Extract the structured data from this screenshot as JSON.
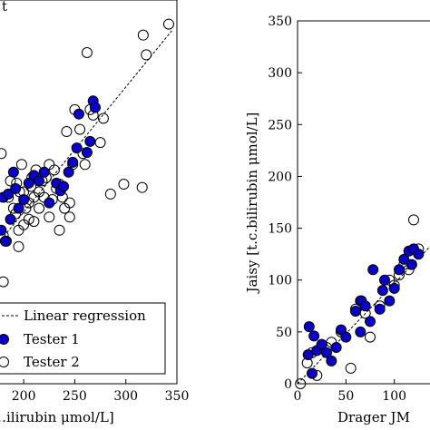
{
  "chart_data": [
    {
      "type": "scatter",
      "panel": "left",
      "title": "",
      "xlabel": "…ilirubin μmol/L]",
      "ylabel": "",
      "xlim": [
        175,
        350
      ],
      "ylim": [
        0,
        350
      ],
      "xticks": [
        200,
        250,
        300,
        350
      ],
      "xtick_labels": [
        "200",
        "250",
        "300",
        "350"
      ],
      "grid": false,
      "legend_position": "bottom-right",
      "legend": [
        "Linear regression",
        "Tester 1",
        "Tester 2"
      ],
      "regression": {
        "style": "dashed",
        "x": [
          175,
          345
        ],
        "y": [
          128,
          322
        ]
      },
      "series": [
        {
          "name": "Tester 1",
          "marker": "filled-circle",
          "color": "#0a00c8",
          "points": [
            [
              178,
              140
            ],
            [
              180,
              170
            ],
            [
              182,
              130
            ],
            [
              185,
              173
            ],
            [
              187,
              150
            ],
            [
              190,
              193
            ],
            [
              192,
              178
            ],
            [
              195,
              160
            ],
            [
              200,
              168
            ],
            [
              205,
              183
            ],
            [
              210,
              190
            ],
            [
              215,
              185
            ],
            [
              220,
              193
            ],
            [
              225,
              165
            ],
            [
              232,
              183
            ],
            [
              236,
              176
            ],
            [
              239,
              180
            ],
            [
              244,
              193
            ],
            [
              248,
              202
            ],
            [
              252,
              215
            ],
            [
              254,
              246
            ],
            [
              262,
              211
            ],
            [
              265,
              221
            ],
            [
              268,
              258
            ],
            [
              270,
              252
            ]
          ]
        },
        {
          "name": "Tester 2",
          "marker": "open-circle",
          "color": "#000000",
          "points": [
            [
              178,
              210
            ],
            [
              180,
              135
            ],
            [
              180,
              93
            ],
            [
              183,
              130
            ],
            [
              185,
              170
            ],
            [
              187,
              185
            ],
            [
              190,
              160
            ],
            [
              192,
              155
            ],
            [
              193,
              183
            ],
            [
              195,
              125
            ],
            [
              195,
              140
            ],
            [
              196,
              175
            ],
            [
              198,
              200
            ],
            [
              200,
              175
            ],
            [
              200,
              145
            ],
            [
              202,
              160
            ],
            [
              205,
              165
            ],
            [
              205,
              150
            ],
            [
              207,
              180
            ],
            [
              208,
              188
            ],
            [
              210,
              170
            ],
            [
              210,
              148
            ],
            [
              212,
              195
            ],
            [
              215,
              175
            ],
            [
              215,
              160
            ],
            [
              218,
              185
            ],
            [
              220,
              170
            ],
            [
              222,
              188
            ],
            [
              225,
              200
            ],
            [
              225,
              152
            ],
            [
              228,
              168
            ],
            [
              230,
              195
            ],
            [
              232,
              178
            ],
            [
              235,
              182
            ],
            [
              235,
              140
            ],
            [
              238,
              170
            ],
            [
              240,
              160
            ],
            [
              242,
              230
            ],
            [
              245,
              165
            ],
            [
              245,
              152
            ],
            [
              248,
              200
            ],
            [
              250,
              250
            ],
            [
              255,
              232
            ],
            [
              258,
              210
            ],
            [
              260,
              200
            ],
            [
              262,
              302
            ],
            [
              265,
              250
            ],
            [
              268,
              245
            ],
            [
              270,
              252
            ],
            [
              275,
              220
            ],
            [
              278,
              242
            ],
            [
              285,
              173
            ],
            [
              298,
              182
            ],
            [
              316,
              179
            ],
            [
              317,
              318
            ],
            [
              320,
              300
            ],
            [
              342,
              328
            ]
          ]
        }
      ]
    },
    {
      "type": "scatter",
      "panel": "right",
      "title": "",
      "xlabel": "Drager JM",
      "ylabel": "Jaisy [t.c.bilirubin μmol/L]",
      "xlim": [
        0,
        150
      ],
      "ylim": [
        0,
        350
      ],
      "xticks": [
        0,
        50,
        100
      ],
      "xtick_labels": [
        "0",
        "50",
        "100"
      ],
      "yticks": [
        0,
        50,
        100,
        150,
        200,
        250,
        300,
        350
      ],
      "ytick_labels": [
        "0",
        "50",
        "100",
        "150",
        "200",
        "250",
        "300",
        "350"
      ],
      "grid": false,
      "regression": {
        "style": "dashed",
        "x": [
          0,
          150
        ],
        "y": [
          0,
          145
        ]
      },
      "series": [
        {
          "name": "Tester 1",
          "marker": "filled-circle",
          "color": "#0a00c8",
          "points": [
            [
              11,
              28
            ],
            [
              12,
              55
            ],
            [
              15,
              10
            ],
            [
              17,
              46
            ],
            [
              20,
              32
            ],
            [
              25,
              38
            ],
            [
              30,
              30
            ],
            [
              35,
              22
            ],
            [
              40,
              35
            ],
            [
              45,
              52
            ],
            [
              50,
              45
            ],
            [
              60,
              70
            ],
            [
              65,
              50
            ],
            [
              66,
              80
            ],
            [
              70,
              75
            ],
            [
              75,
              60
            ],
            [
              78,
              110
            ],
            [
              85,
              72
            ],
            [
              88,
              90
            ],
            [
              90,
              100
            ],
            [
              95,
              80
            ],
            [
              100,
              92
            ],
            [
              105,
              110
            ],
            [
              110,
              120
            ],
            [
              115,
              128
            ],
            [
              118,
              115
            ],
            [
              120,
              130
            ],
            [
              125,
              125
            ]
          ]
        },
        {
          "name": "Tester 2",
          "marker": "open-circle",
          "color": "#000000",
          "points": [
            [
              3,
              0
            ],
            [
              10,
              20
            ],
            [
              15,
              30
            ],
            [
              20,
              8
            ],
            [
              30,
              35
            ],
            [
              35,
              40
            ],
            [
              45,
              50
            ],
            [
              55,
              15
            ],
            [
              60,
              72
            ],
            [
              65,
              80
            ],
            [
              70,
              68
            ],
            [
              75,
              45
            ],
            [
              85,
              75
            ],
            [
              95,
              100
            ],
            [
              100,
              95
            ],
            [
              105,
              105
            ],
            [
              110,
              115
            ],
            [
              115,
              110
            ],
            [
              120,
              158
            ],
            [
              125,
              130
            ]
          ]
        }
      ]
    }
  ],
  "left_panel": {
    "top_fragment": "t",
    "legend_items": [
      "Linear regression",
      "Tester 1",
      "Tester 2"
    ]
  }
}
